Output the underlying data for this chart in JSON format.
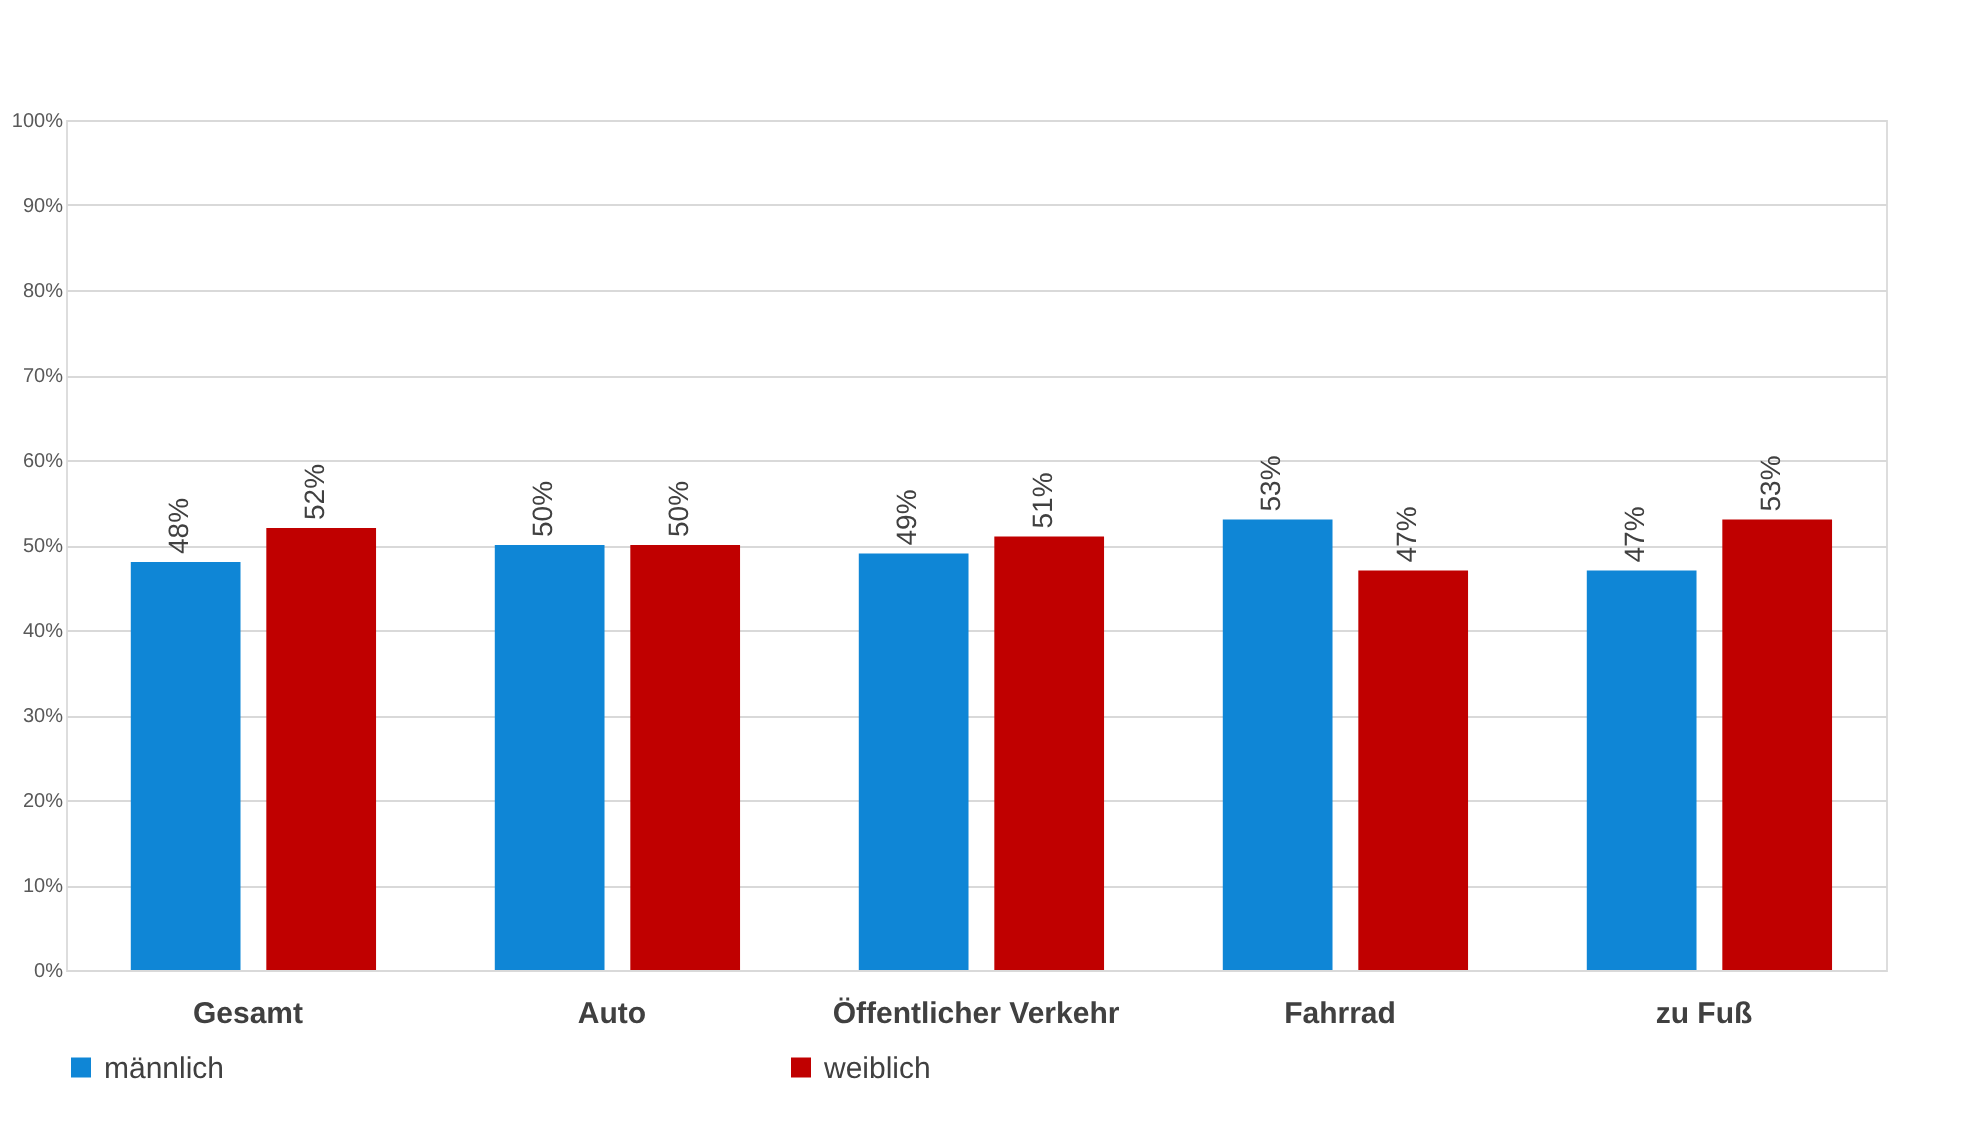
{
  "chart_data": {
    "type": "bar",
    "categories": [
      "Gesamt",
      "Auto",
      "Öffentlicher Verkehr",
      "Fahrrad",
      "zu Fuß"
    ],
    "series": [
      {
        "name": "männlich",
        "color": "#0f86d6",
        "values": [
          48,
          50,
          49,
          53,
          47
        ],
        "value_labels": [
          "48%",
          "50%",
          "49%",
          "53%",
          "47%"
        ]
      },
      {
        "name": "weiblich",
        "color": "#c00000",
        "values": [
          52,
          50,
          51,
          47,
          53
        ],
        "value_labels": [
          "52%",
          "50%",
          "51%",
          "47%",
          "53%"
        ]
      }
    ],
    "ylim": [
      0,
      100
    ],
    "yticks": [
      {
        "value": 0,
        "label": "0%"
      },
      {
        "value": 10,
        "label": "10%"
      },
      {
        "value": 20,
        "label": "20%"
      },
      {
        "value": 30,
        "label": "30%"
      },
      {
        "value": 40,
        "label": "40%"
      },
      {
        "value": 50,
        "label": "50%"
      },
      {
        "value": 60,
        "label": "60%"
      },
      {
        "value": 70,
        "label": "70%"
      },
      {
        "value": 80,
        "label": "80%"
      },
      {
        "value": 90,
        "label": "90%"
      },
      {
        "value": 100,
        "label": "100%"
      }
    ],
    "grid": "y",
    "legend": "bottom"
  }
}
